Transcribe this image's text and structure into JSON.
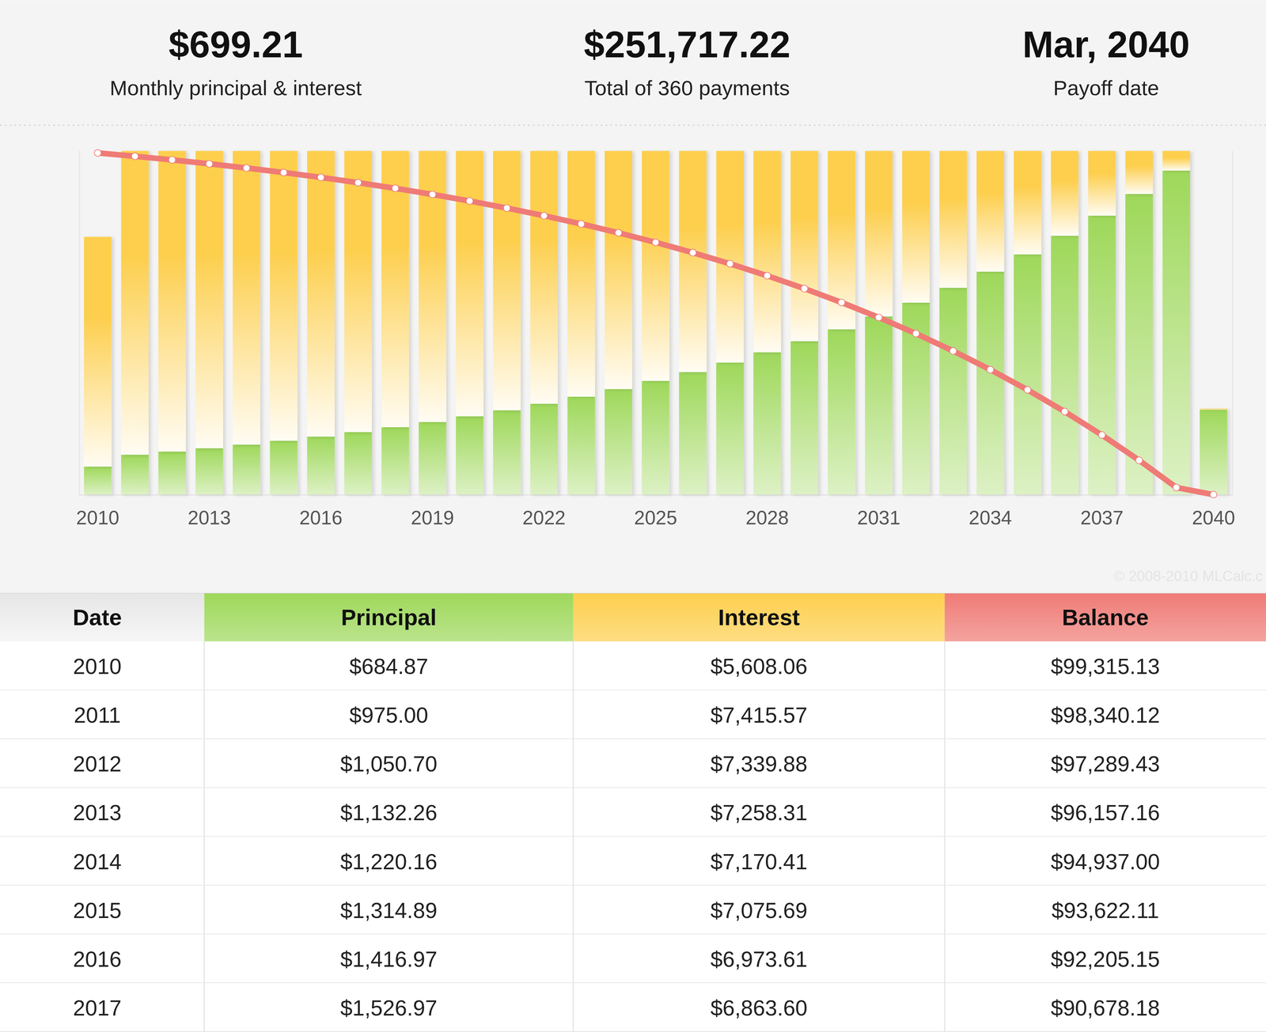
{
  "summary": [
    {
      "value": "$699.21",
      "label": "Monthly principal & interest"
    },
    {
      "value": "$251,717.22",
      "label": "Total of 360 payments"
    },
    {
      "value": "Mar, 2040",
      "label": "Payoff date"
    }
  ],
  "chart_data": {
    "type": "bar",
    "stacked": true,
    "tick_labels": "x",
    "categories": [
      "2010",
      null,
      null,
      "2013",
      null,
      null,
      "2016",
      null,
      null,
      "2019",
      null,
      null,
      "2022",
      null,
      null,
      "2025",
      null,
      null,
      "2028",
      null,
      null,
      "2031",
      null,
      null,
      "2034",
      null,
      null,
      "2037",
      null,
      null,
      "2040"
    ],
    "ylim": [
      0,
      8400
    ],
    "y2lim": [
      0,
      100000
    ],
    "series": [
      {
        "name": "Principal",
        "color": "#9ed85a",
        "values": [
          684.87,
          975.0,
          1050.7,
          1132.26,
          1220.16,
          1314.89,
          1416.97,
          1526.97,
          1645.5,
          1773.2,
          1910.9,
          2059.2,
          2219.1,
          2391.4,
          2577.0,
          2777.1,
          2992.7,
          3225.0,
          3475.4,
          3745.2,
          4036.0,
          4349.3,
          4687.0,
          5050.8,
          5442.9,
          5865.5,
          6320.9,
          6811.6,
          7340.4,
          7910.3,
          2071.8
        ]
      },
      {
        "name": "Interest",
        "color": "#fdcf4e",
        "values": [
          5608.06,
          7415.57,
          7339.88,
          7258.31,
          7170.41,
          7075.69,
          6973.61,
          6863.6,
          6745.0,
          6617.3,
          6479.6,
          6331.3,
          6171.4,
          5999.1,
          5813.5,
          5613.4,
          5397.8,
          5165.5,
          4915.1,
          4645.3,
          4354.5,
          4041.2,
          3703.5,
          3339.7,
          2947.6,
          2525.0,
          2069.6,
          1578.9,
          1050.1,
          480.2,
          25.8
        ]
      },
      {
        "name": "Balance",
        "type": "line",
        "axis": "y2",
        "color": "#ef7b76",
        "marker": "circle",
        "values": [
          99315.13,
          98340.12,
          97289.43,
          96157.16,
          94937.0,
          93622.11,
          92205.15,
          90678.18,
          89032.7,
          87259.5,
          85348.6,
          83289.4,
          81070.3,
          78678.9,
          76101.9,
          73324.8,
          70332.1,
          67107.1,
          63631.7,
          59886.5,
          55850.5,
          51501.2,
          46814.2,
          41763.4,
          36320.5,
          30455.0,
          24134.1,
          17322.5,
          9982.1,
          2071.8,
          0
        ]
      }
    ]
  },
  "copyright": "© 2008-2010 MLCalc.c",
  "table": {
    "date_header": "Date",
    "rows": [
      [
        "2010",
        "$684.87",
        "$5,608.06",
        "$99,315.13"
      ],
      [
        "2011",
        "$975.00",
        "$7,415.57",
        "$98,340.12"
      ],
      [
        "2012",
        "$1,050.70",
        "$7,339.88",
        "$97,289.43"
      ],
      [
        "2013",
        "$1,132.26",
        "$7,258.31",
        "$96,157.16"
      ],
      [
        "2014",
        "$1,220.16",
        "$7,170.41",
        "$94,937.00"
      ],
      [
        "2015",
        "$1,314.89",
        "$7,075.69",
        "$93,622.11"
      ],
      [
        "2016",
        "$1,416.97",
        "$6,973.61",
        "$92,205.15"
      ],
      [
        "2017",
        "$1,526.97",
        "$6,863.60",
        "$90,678.18"
      ]
    ]
  }
}
